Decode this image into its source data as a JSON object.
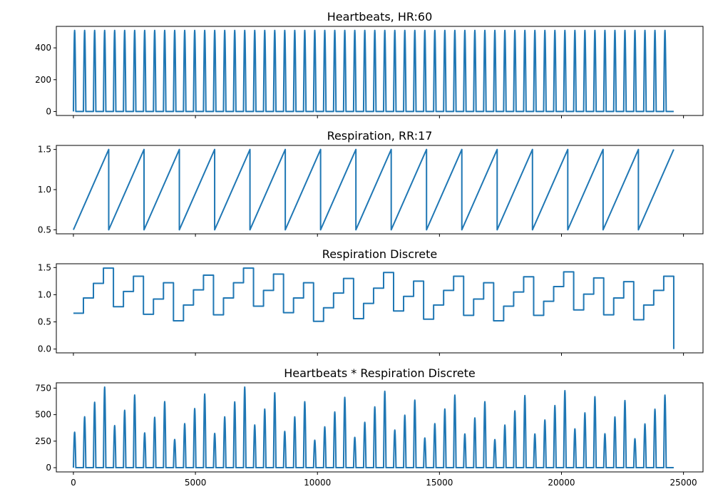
{
  "chart_data": [
    {
      "type": "line",
      "title": "Heartbeats, HR:60",
      "xlim": [
        -700,
        25800
      ],
      "ylim": [
        -25,
        535
      ],
      "yticks": [
        0,
        200,
        400
      ],
      "yticklabels": [
        "0",
        "200",
        "400"
      ],
      "xticks": [
        0,
        5000,
        10000,
        15000,
        20000,
        25000
      ],
      "xticklabels": [],
      "color": "#1f77b4",
      "pattern": {
        "kind": "pulses",
        "period": 410,
        "count": 60,
        "peak_offset": 50,
        "width": 100,
        "peak": 510,
        "x_end": 24600
      }
    },
    {
      "type": "line",
      "title": "Respiration, RR:17",
      "xlim": [
        -700,
        25800
      ],
      "ylim": [
        0.45,
        1.55
      ],
      "yticks": [
        0.5,
        1.0,
        1.5
      ],
      "yticklabels": [
        "0.5",
        "1.0",
        "1.5"
      ],
      "xticks": [
        0,
        5000,
        10000,
        15000,
        20000,
        25000
      ],
      "xticklabels": [],
      "color": "#1f77b4",
      "pattern": {
        "kind": "sawtooth",
        "period": 1447,
        "count": 17,
        "low": 0.5,
        "high": 1.5,
        "x_end": 24600
      }
    },
    {
      "type": "line",
      "title": "Respiration Discrete",
      "xlim": [
        -700,
        25800
      ],
      "ylim": [
        -0.07,
        1.57
      ],
      "yticks": [
        0.0,
        0.5,
        1.0,
        1.5
      ],
      "yticklabels": [
        "0.0",
        "0.5",
        "1.0",
        "1.5"
      ],
      "xticks": [
        0,
        5000,
        10000,
        15000,
        20000,
        25000
      ],
      "xticklabels": [],
      "color": "#1f77b4",
      "pattern": {
        "kind": "steps",
        "x_end": 24600,
        "step_width": 410,
        "values": [
          0.66,
          0.94,
          1.21,
          1.49,
          0.78,
          1.06,
          1.34,
          0.64,
          0.92,
          1.22,
          0.52,
          0.81,
          1.09,
          1.36,
          0.63,
          0.94,
          1.22,
          1.49,
          0.79,
          1.08,
          1.38,
          0.67,
          0.94,
          1.22,
          0.51,
          0.76,
          1.03,
          1.3,
          0.56,
          0.84,
          1.12,
          1.41,
          0.7,
          0.97,
          1.25,
          0.55,
          0.81,
          1.08,
          1.34,
          0.62,
          0.92,
          1.22,
          0.52,
          0.79,
          1.05,
          1.33,
          0.62,
          0.88,
          1.15,
          1.42,
          0.72,
          1.01,
          1.31,
          0.63,
          0.94,
          1.24,
          0.54,
          0.81,
          1.08,
          1.34
        ],
        "final_drop": 0.0
      }
    },
    {
      "type": "line",
      "title": "Heartbeats * Respiration Discrete",
      "xlim": [
        -700,
        25800
      ],
      "ylim": [
        -40,
        800
      ],
      "yticks": [
        0,
        250,
        500,
        750
      ],
      "yticklabels": [
        "0",
        "250",
        "500",
        "750"
      ],
      "xticks": [
        0,
        5000,
        10000,
        15000,
        20000,
        25000
      ],
      "xticklabels": [
        "0",
        "5000",
        "10000",
        "15000",
        "20000",
        "25000"
      ],
      "color": "#1f77b4",
      "pattern": {
        "kind": "pulses_product",
        "period": 410,
        "peak_offset": 50,
        "width": 100,
        "x_end": 24600,
        "peaks": [
          335,
          480,
          617,
          760,
          397,
          541,
          685,
          328,
          475,
          623,
          266,
          415,
          557,
          694,
          323,
          479,
          620,
          760,
          403,
          552,
          706,
          342,
          479,
          622,
          259,
          385,
          525,
          663,
          286,
          428,
          573,
          720,
          355,
          495,
          637,
          280,
          415,
          553,
          684,
          318,
          469,
          622,
          265,
          402,
          535,
          680,
          318,
          450,
          586,
          726,
          366,
          517,
          669,
          320,
          478,
          633,
          273,
          413,
          551,
          684
        ]
      }
    }
  ]
}
